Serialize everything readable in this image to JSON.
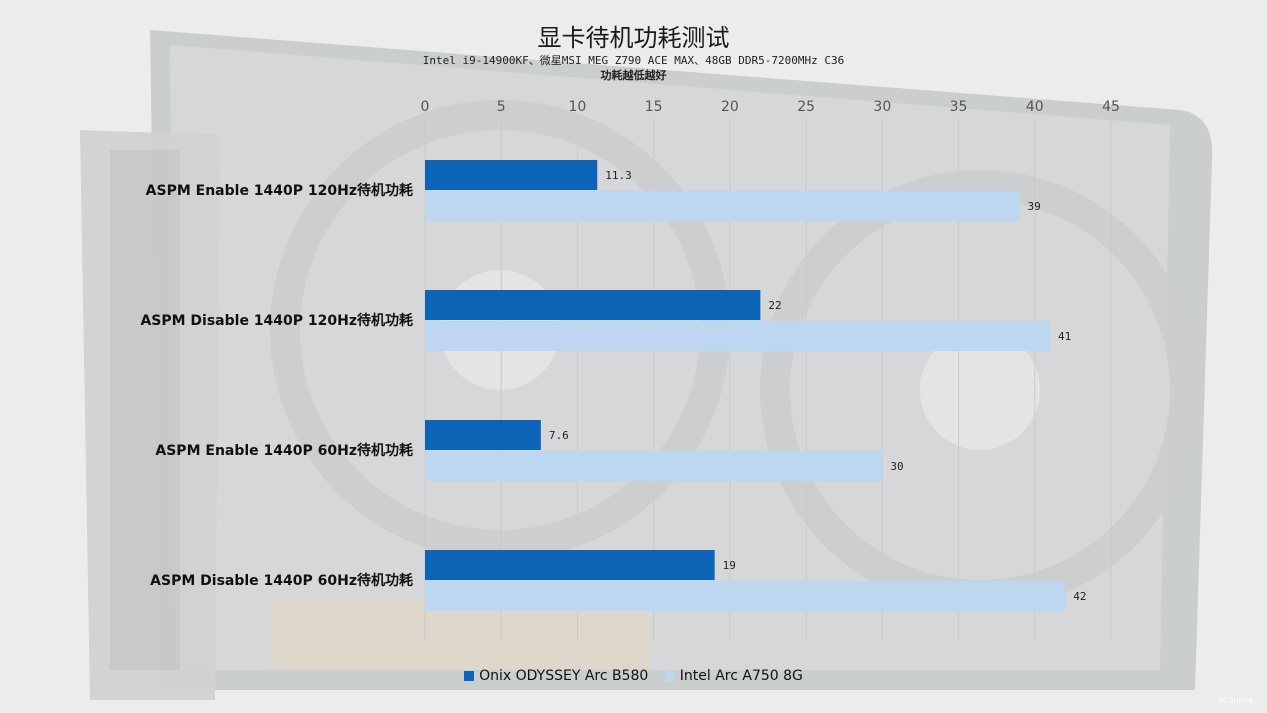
{
  "title": "显卡待机功耗测试",
  "subtitle": "Intel i9-14900KF、微星MSI MEG Z790 ACE MAX、48GB DDR5-7200MHz C36",
  "note": "功耗越低越好",
  "watermark": "PConline",
  "colors": {
    "series1": "#0d63b5",
    "series2": "#bcd7ef",
    "grid": "#c9c9c9"
  },
  "chart_data": {
    "type": "bar",
    "orientation": "horizontal",
    "categories": [
      "ASPM Enable 1440P 120Hz待机功耗",
      "ASPM Disable 1440P 120Hz待机功耗",
      "ASPM Enable 1440P 60Hz待机功耗",
      "ASPM Disable 1440P 60Hz待机功耗"
    ],
    "series": [
      {
        "name": "Onix ODYSSEY Arc B580",
        "values": [
          11.3,
          22,
          7.6,
          19
        ],
        "labels": [
          "11.3",
          "22",
          "7.6",
          "19"
        ]
      },
      {
        "name": "Intel Arc A750 8G",
        "values": [
          39,
          41,
          30,
          42
        ],
        "labels": [
          "39",
          "41",
          "30",
          "42"
        ]
      }
    ],
    "xlim": [
      0,
      45
    ],
    "xticks": [
      0,
      5,
      10,
      15,
      20,
      25,
      30,
      35,
      40,
      45
    ],
    "x_axis_position": "top",
    "grid": true,
    "legend_position": "bottom"
  }
}
